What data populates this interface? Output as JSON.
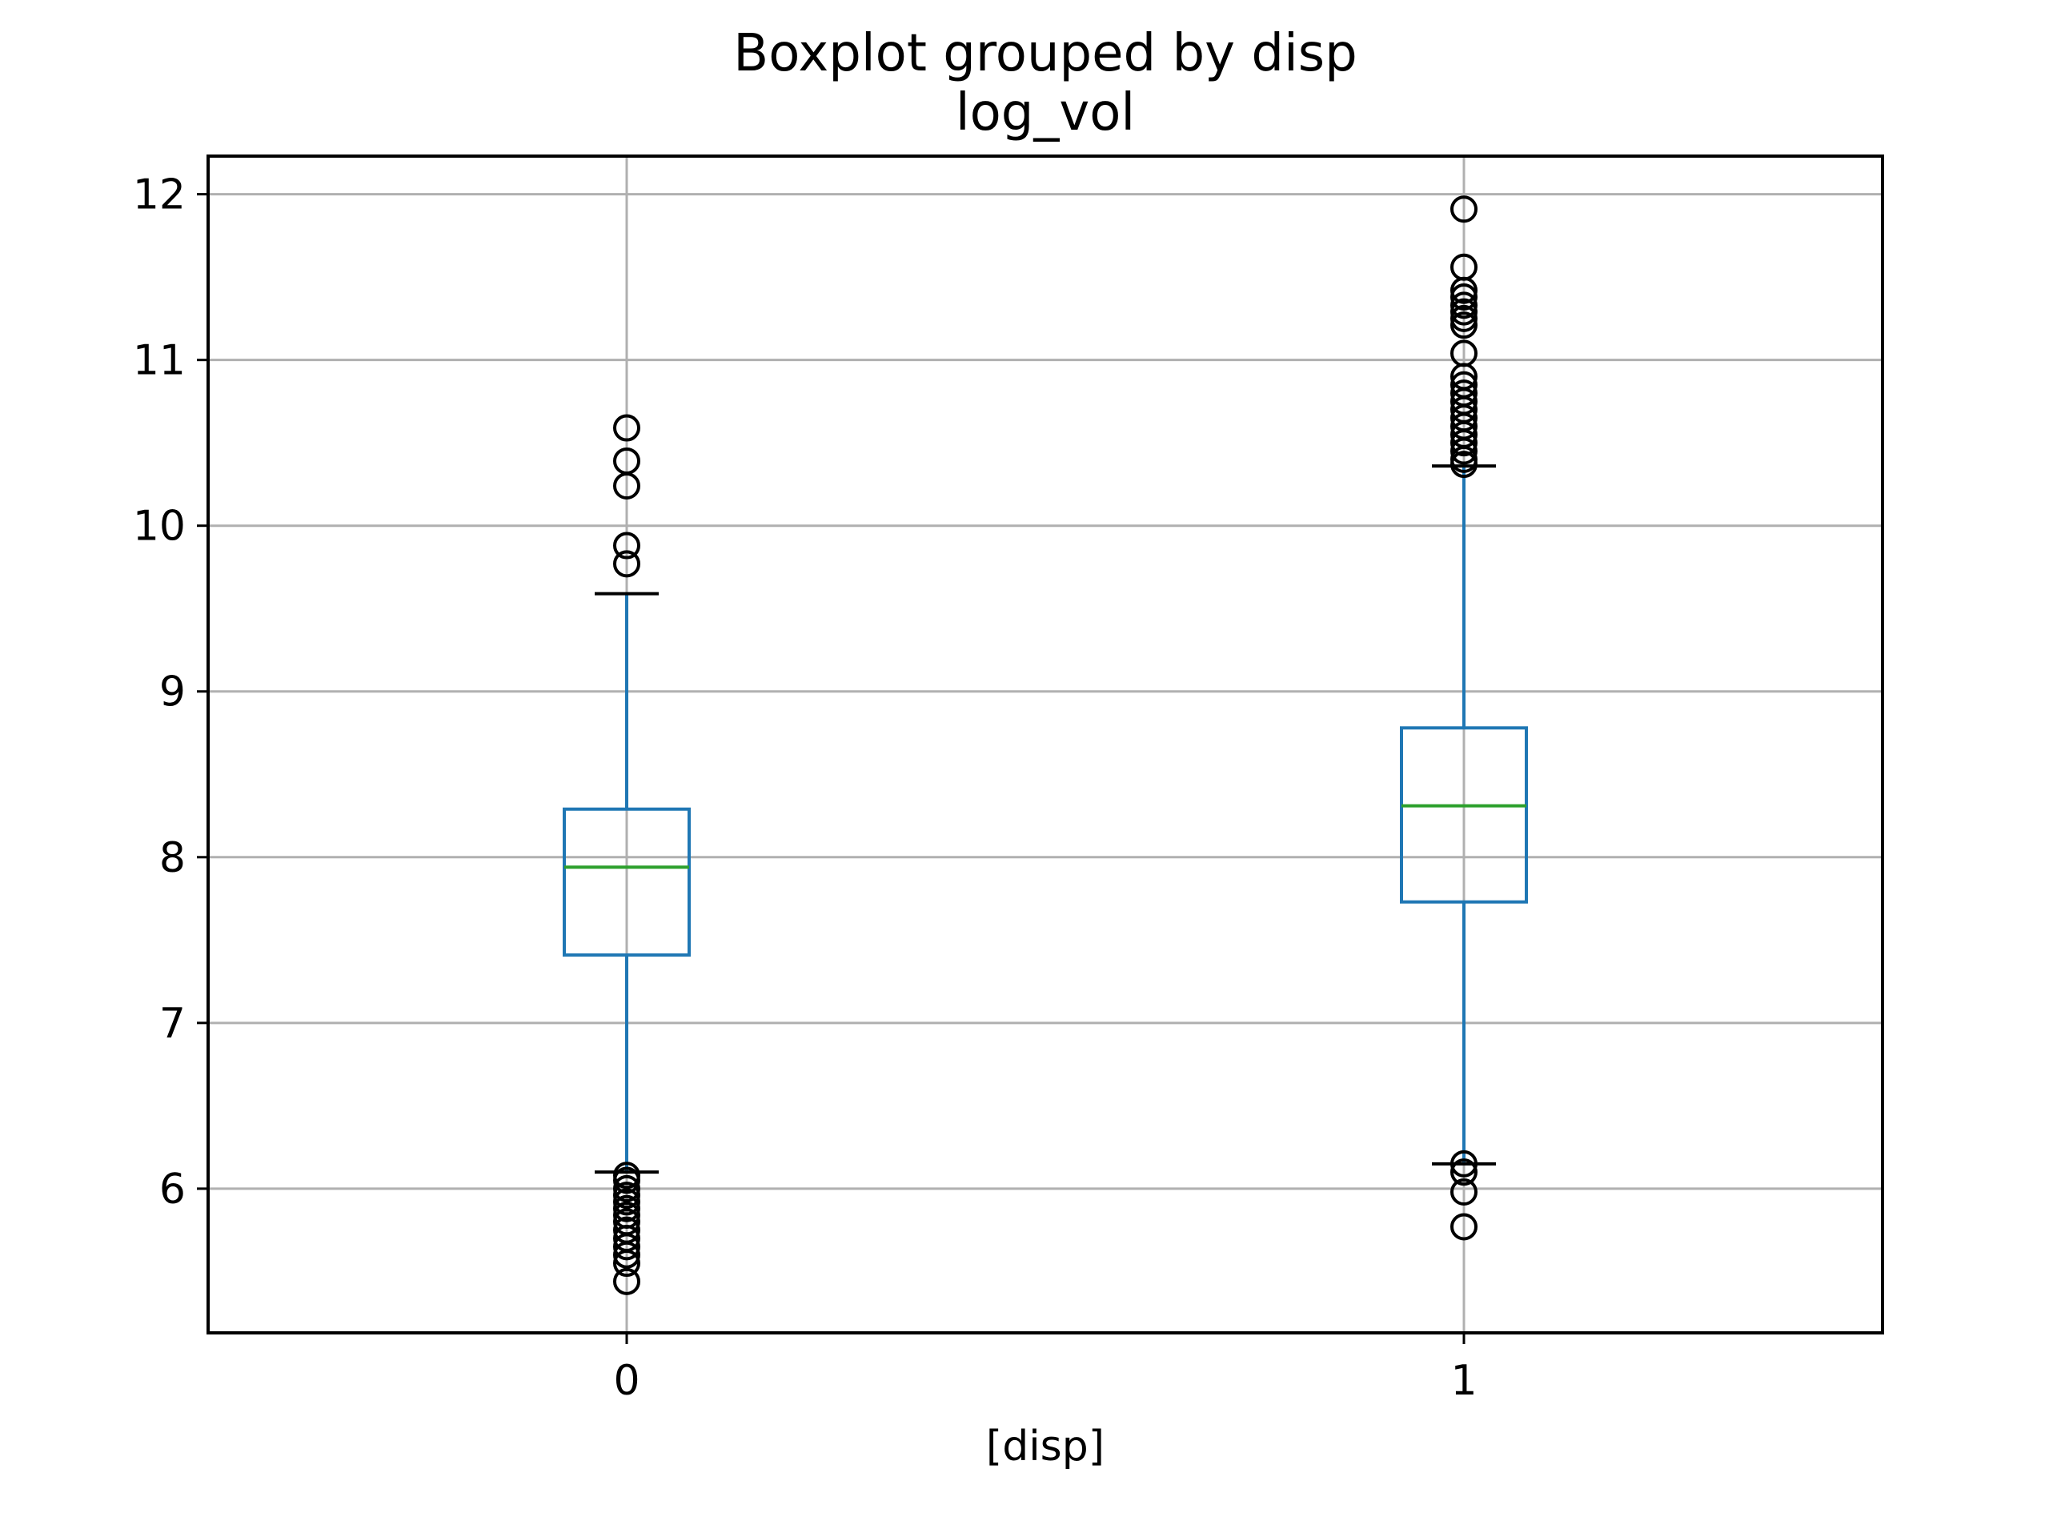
{
  "chart_data": {
    "type": "box",
    "title": "Boxplot grouped by disp",
    "subtitle": "log_vol",
    "xlabel": "[disp]",
    "ylabel": "",
    "ylim": [
      5.13,
      12.23
    ],
    "y_ticks": [
      6,
      7,
      8,
      9,
      10,
      11,
      12
    ],
    "categories": [
      "0",
      "1"
    ],
    "grid": true,
    "legend": "none",
    "colors": {
      "box": "#1f77b4",
      "median": "#2ca02c",
      "caps": "#000000",
      "outliers": "#000000",
      "grid": "#b0b0b0",
      "frame": "#000000"
    },
    "boxes": [
      {
        "category": "0",
        "whisker_low": 6.1,
        "q1": 7.41,
        "median": 7.94,
        "q3": 8.29,
        "whisker_high": 9.59,
        "outliers": [
          10.59,
          10.39,
          10.24,
          9.88,
          9.77,
          6.08,
          6.05,
          6.0,
          5.96,
          5.92,
          5.88,
          5.84,
          5.8,
          5.75,
          5.7,
          5.65,
          5.6,
          5.55,
          5.44
        ]
      },
      {
        "category": "1",
        "whisker_low": 6.15,
        "q1": 7.73,
        "median": 8.31,
        "q3": 8.78,
        "whisker_high": 10.36,
        "outliers": [
          11.91,
          11.56,
          11.42,
          11.38,
          11.33,
          11.29,
          11.25,
          11.21,
          11.04,
          10.9,
          10.85,
          10.8,
          10.75,
          10.7,
          10.65,
          10.6,
          10.55,
          10.5,
          10.45,
          10.4,
          10.37,
          6.15,
          6.1,
          5.98,
          5.77
        ]
      }
    ]
  }
}
